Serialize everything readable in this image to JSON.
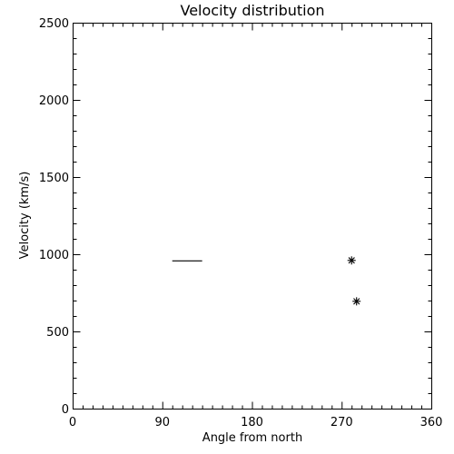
{
  "chart_data": {
    "type": "scatter",
    "title": "Velocity distribution",
    "xlabel": "Angle from north",
    "ylabel": "Velocity (km/s)",
    "xlim": [
      0,
      360
    ],
    "ylim": [
      0,
      2500
    ],
    "x_major_ticks": [
      0,
      90,
      180,
      270,
      360
    ],
    "x_tick_labels": [
      "0",
      "90",
      "180",
      "270",
      "360"
    ],
    "x_minor_step": 10,
    "y_major_ticks": [
      0,
      500,
      1000,
      1500,
      2000,
      2500
    ],
    "y_tick_labels": [
      "0",
      "500",
      "1000",
      "1500",
      "2000",
      "2500"
    ],
    "y_minor_step": 100,
    "grid": false,
    "series": [
      {
        "marker": "horizontal-line-segment",
        "segments": [
          {
            "x_start": 100,
            "x_end": 130,
            "y": 960
          }
        ]
      },
      {
        "marker": "asterisk",
        "points": [
          {
            "x": 280,
            "y": 960
          },
          {
            "x": 285,
            "y": 695
          }
        ]
      }
    ],
    "colors": {
      "foreground": "#000000",
      "background": "#ffffff"
    }
  }
}
